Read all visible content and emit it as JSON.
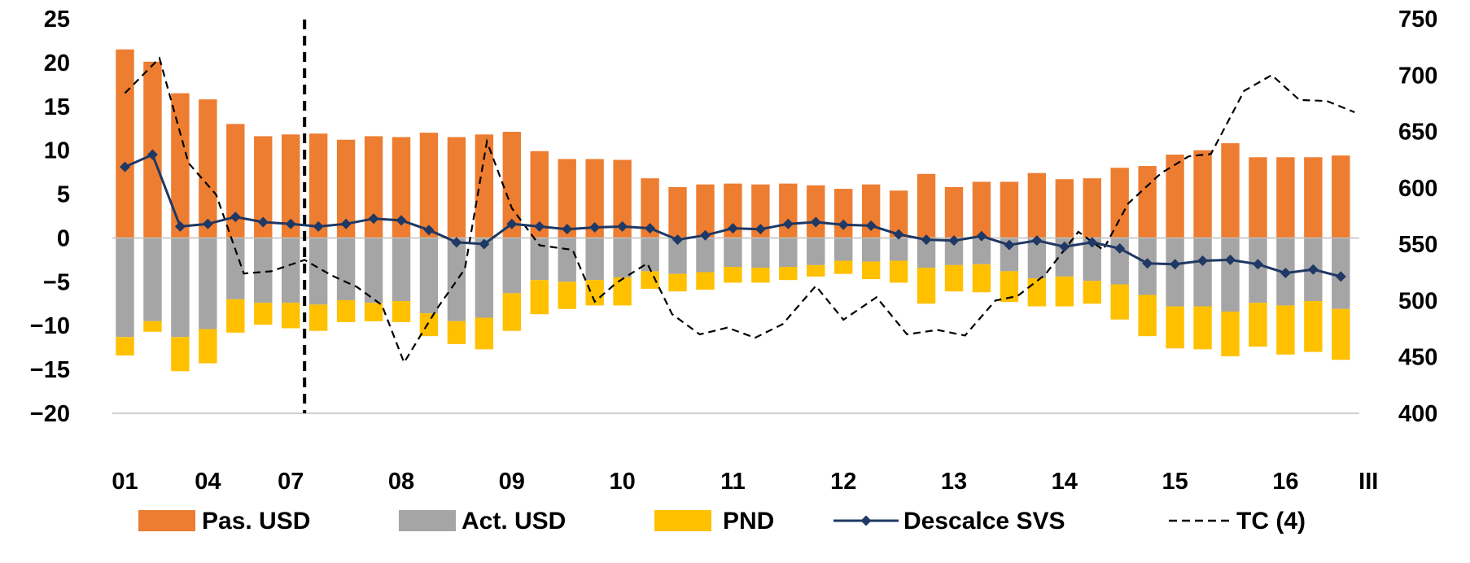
{
  "chart_data": {
    "type": "bar",
    "title": "",
    "xlabel": "",
    "ylabel": "",
    "ylim": [
      -20,
      25
    ],
    "y2lim": [
      400,
      750
    ],
    "yticks": [
      "25",
      "20",
      "15",
      "10",
      "5",
      "0",
      "−5",
      "−10",
      "−15",
      "−20"
    ],
    "y2ticks": [
      "750",
      "700",
      "650",
      "600",
      "550",
      "500",
      "450",
      "400"
    ],
    "category_labels": [
      {
        "index": 0,
        "label": "01"
      },
      {
        "index": 3,
        "label": "04"
      },
      {
        "index": 6,
        "label": "07"
      },
      {
        "index": 10,
        "label": "08"
      },
      {
        "index": 14,
        "label": "09"
      },
      {
        "index": 18,
        "label": "10"
      },
      {
        "index": 22,
        "label": "11"
      },
      {
        "index": 26,
        "label": "12"
      },
      {
        "index": 30,
        "label": "13"
      },
      {
        "index": 34,
        "label": "14"
      },
      {
        "index": 38,
        "label": "15"
      },
      {
        "index": 42,
        "label": "16"
      },
      {
        "index": 45,
        "label": "III"
      }
    ],
    "vertical_marker_after_index": 6,
    "colors": {
      "pas_usd": "#ED7D31",
      "act_usd": "#A5A5A5",
      "pnd": "#FFC000",
      "descalce": "#1F3864",
      "tc": "#000000"
    },
    "series": [
      {
        "name": "Pas. USD",
        "kind": "bar",
        "values": [
          21.5,
          20.1,
          16.5,
          15.8,
          13.0,
          11.6,
          11.8,
          11.9,
          11.2,
          11.6,
          11.5,
          12.0,
          11.5,
          11.8,
          12.1,
          9.9,
          9.0,
          9.0,
          8.9,
          6.8,
          5.8,
          6.1,
          6.2,
          6.1,
          6.2,
          6.0,
          5.6,
          6.1,
          5.4,
          7.3,
          5.8,
          6.4,
          6.4,
          7.4,
          6.7,
          6.8,
          8.0,
          8.2,
          9.5,
          10.0,
          10.8,
          9.2,
          9.2,
          9.2,
          9.4
        ]
      },
      {
        "name": "Act. USD",
        "kind": "bar",
        "values": [
          -11.3,
          -9.5,
          -11.3,
          -10.4,
          -7.0,
          -7.4,
          -7.4,
          -7.6,
          -7.1,
          -7.4,
          -7.2,
          -8.6,
          -9.5,
          -9.1,
          -6.3,
          -4.8,
          -5.0,
          -4.8,
          -4.5,
          -3.8,
          -4.1,
          -3.9,
          -3.3,
          -3.4,
          -3.3,
          -3.1,
          -2.6,
          -2.7,
          -2.6,
          -3.4,
          -3.1,
          -3.0,
          -3.8,
          -4.6,
          -4.4,
          -4.9,
          -5.3,
          -6.5,
          -7.8,
          -7.8,
          -8.4,
          -7.4,
          -7.7,
          -7.2,
          -8.1
        ]
      },
      {
        "name": "PND",
        "kind": "bar",
        "values": [
          -2.1,
          -1.2,
          -3.9,
          -3.9,
          -3.8,
          -2.5,
          -2.9,
          -3.0,
          -2.5,
          -2.1,
          -2.4,
          -2.6,
          -2.6,
          -3.6,
          -4.3,
          -3.9,
          -3.1,
          -2.9,
          -3.2,
          -2.0,
          -2.0,
          -2.0,
          -1.8,
          -1.7,
          -1.5,
          -1.3,
          -1.5,
          -2.0,
          -2.5,
          -4.1,
          -3.0,
          -3.2,
          -3.5,
          -3.2,
          -3.4,
          -2.6,
          -4.0,
          -4.7,
          -4.8,
          -4.9,
          -5.1,
          -5.0,
          -5.6,
          -5.8,
          -5.8
        ]
      },
      {
        "name": "Descalce SVS",
        "kind": "line-marker",
        "values": [
          8.1,
          9.5,
          1.3,
          1.6,
          2.4,
          1.8,
          1.6,
          1.3,
          1.6,
          2.2,
          2.0,
          0.9,
          -0.5,
          -0.7,
          1.6,
          1.3,
          1.0,
          1.2,
          1.3,
          1.1,
          -0.2,
          0.3,
          1.1,
          1.0,
          1.6,
          1.8,
          1.5,
          1.4,
          0.4,
          -0.2,
          -0.3,
          0.2,
          -0.8,
          -0.3,
          -1.0,
          -0.5,
          -1.2,
          -2.9,
          -3.0,
          -2.6,
          -2.5,
          -3.0,
          -4.0,
          -3.6,
          -4.4
        ]
      },
      {
        "name": "TC (4)",
        "kind": "dashed-line",
        "axis": "right",
        "points": [
          [
            0,
            684
          ],
          [
            1.25,
            715
          ],
          [
            2.3,
            622
          ],
          [
            3.3,
            594
          ],
          [
            4.3,
            524
          ],
          [
            5.3,
            526
          ],
          [
            6.5,
            536
          ],
          [
            7.5,
            522
          ],
          [
            8.4,
            512
          ],
          [
            9.3,
            496
          ],
          [
            10.1,
            445
          ],
          [
            11.3,
            493
          ],
          [
            12.3,
            528
          ],
          [
            13.1,
            641
          ],
          [
            14.0,
            582
          ],
          [
            15.0,
            549
          ],
          [
            16.2,
            545
          ],
          [
            17.0,
            499
          ],
          [
            17.8,
            516
          ],
          [
            18.9,
            533
          ],
          [
            19.8,
            488
          ],
          [
            20.8,
            470
          ],
          [
            21.8,
            476
          ],
          [
            22.8,
            467
          ],
          [
            23.8,
            479
          ],
          [
            25.0,
            513
          ],
          [
            26.0,
            483
          ],
          [
            27.2,
            503
          ],
          [
            28.3,
            470
          ],
          [
            29.4,
            474
          ],
          [
            30.4,
            469
          ],
          [
            31.5,
            500
          ],
          [
            32.3,
            504
          ],
          [
            33.3,
            523
          ],
          [
            34.5,
            561
          ],
          [
            35.4,
            545
          ],
          [
            36.3,
            586
          ],
          [
            37.5,
            613
          ],
          [
            38.5,
            628
          ],
          [
            39.3,
            630
          ],
          [
            40.5,
            686
          ],
          [
            41.5,
            700
          ],
          [
            42.5,
            678
          ],
          [
            43.5,
            677
          ],
          [
            44.5,
            667
          ]
        ]
      }
    ],
    "legend": {
      "position": "bottom",
      "entries": [
        {
          "label": "Pas. USD",
          "symbol": "bar",
          "color": "#ED7D31"
        },
        {
          "label": "Act. USD",
          "symbol": "bar",
          "color": "#A5A5A5"
        },
        {
          "label": "PND",
          "symbol": "bar",
          "color": "#FFC000"
        },
        {
          "label": "Descalce SVS",
          "symbol": "line-marker",
          "color": "#1F3864"
        },
        {
          "label": "TC (4)",
          "symbol": "dashed-line",
          "color": "#000000"
        }
      ]
    }
  }
}
